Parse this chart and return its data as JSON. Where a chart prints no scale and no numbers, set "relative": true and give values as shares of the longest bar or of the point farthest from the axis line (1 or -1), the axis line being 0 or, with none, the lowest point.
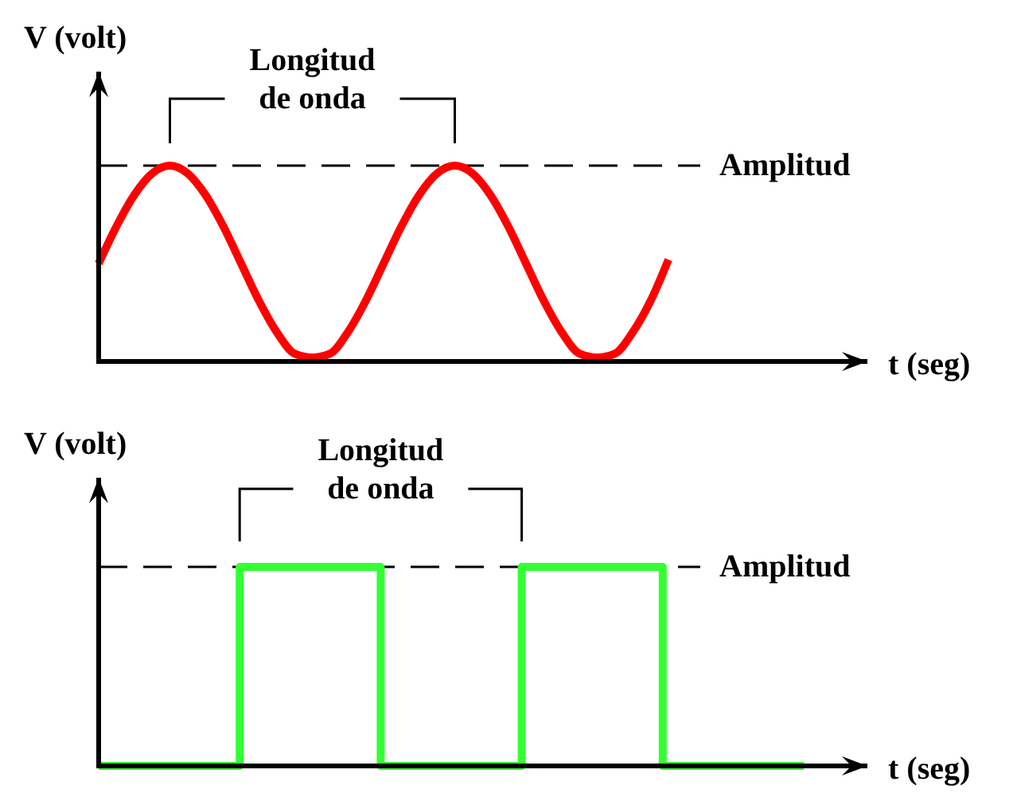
{
  "chart_data": [
    {
      "type": "line",
      "relative": true,
      "ylabel": "V (volt)",
      "xlabel": "t (seg)",
      "categories": [
        null,
        null,
        null,
        null,
        null,
        null,
        null,
        null,
        null,
        null,
        null,
        null,
        null,
        null,
        null,
        null,
        null,
        null,
        null,
        null,
        null,
        null,
        null,
        null,
        null,
        null,
        null,
        null,
        null,
        null,
        null,
        null,
        null
      ],
      "series": [
        {
          "color": "#ff0000",
          "values": [
            0.5,
            0.69,
            0.85,
            0.96,
            1,
            0.96,
            0.85,
            0.69,
            0.5,
            0.31,
            0.15,
            0.04,
            0.02,
            0.04,
            0.15,
            0.31,
            0.5,
            0.69,
            0.85,
            0.96,
            1,
            0.96,
            0.85,
            0.69,
            0.5,
            0.31,
            0.15,
            0.04,
            0.02,
            0.04,
            0.15,
            0.31,
            0.52
          ]
        }
      ],
      "ref_lines": [
        {
          "axis": "y",
          "value": 1,
          "label": "Amplitud",
          "line_style": "dashed",
          "color": "#000000"
        }
      ],
      "annotations": [
        "Longitud\nde onda"
      ]
    },
    {
      "type": "step",
      "relative": true,
      "ylabel": "V (volt)",
      "xlabel": "t (seg)",
      "categories": [
        null,
        null,
        null,
        null,
        null,
        null
      ],
      "series": [
        {
          "color": "#33ff33",
          "values": [
            0,
            1,
            0,
            1,
            0,
            0
          ]
        }
      ],
      "ref_lines": [
        {
          "axis": "y",
          "value": 1,
          "label": "Amplitud",
          "line_style": "dashed",
          "color": "#000000"
        }
      ],
      "annotations": [
        "Longitud\nde onda"
      ]
    }
  ]
}
